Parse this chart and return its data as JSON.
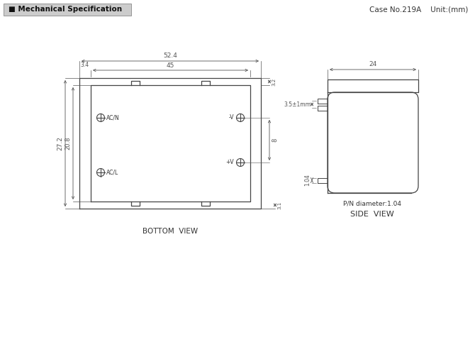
{
  "title": "Mechanical Specification",
  "case_info": "Case No.219A    Unit:(mm)",
  "bottom_view_label": "BOTTOM  VIEW",
  "side_view_label": "SIDE  VIEW",
  "pin_diameter_label": "P/N diameter:1.04",
  "dims": {
    "width_52_4": "52.4",
    "width_45": "45",
    "offset_3_4": "3.4",
    "height_27_2": "27.2",
    "height_20_8": "20.8",
    "dim_3_2a": "3.2",
    "dim_3_1": "3.1",
    "dim_8": "8",
    "dim_3_2b": "3.2",
    "dim_24": "24",
    "dim_3_5": "3.5±1mm",
    "dim_1_04": "1.04"
  },
  "pin_labels": [
    "AC/N",
    "-V",
    "+V",
    "AC/L"
  ],
  "bg_color": "#ffffff",
  "line_color": "#444444",
  "dim_color": "#555555",
  "text_color": "#333333",
  "header_bg": "#cccccc",
  "header_text": "#111111"
}
